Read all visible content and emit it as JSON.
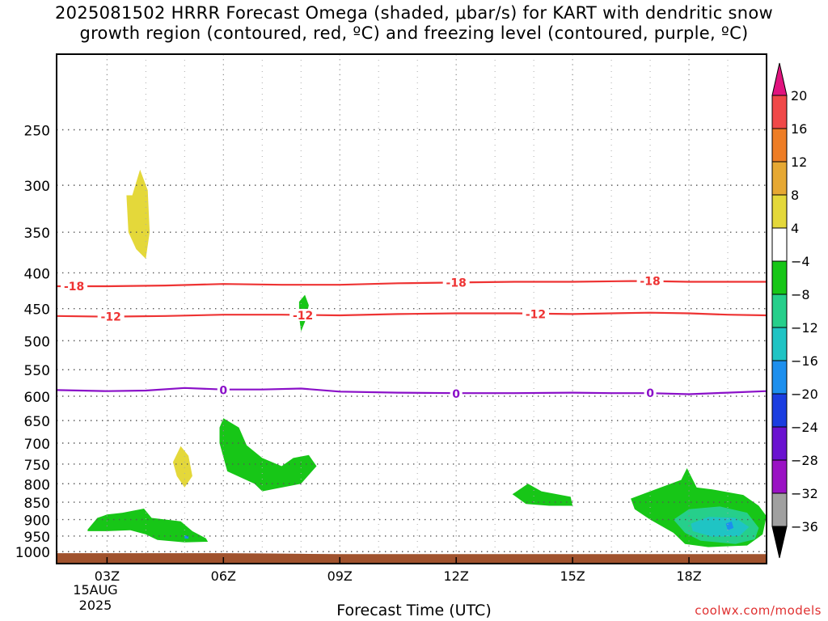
{
  "title": {
    "line1": "2025081502 HRRR Forecast Omega (shaded, μbar/s) for KART with dendritic snow",
    "line2": "growth region (contoured, red, ºC) and freezing level (contoured, purple, ºC)"
  },
  "footer": {
    "xlabel": "Forecast Time (UTC)",
    "site": "coolwx.com/models",
    "date_line1": "15AUG",
    "date_line2": "2025"
  },
  "colors": {
    "snow_growth_contour": "#ee3333",
    "freezing_level_contour": "#8a10c8",
    "terrain": "#a0522d",
    "grid": "#555555"
  },
  "chart_data": {
    "type": "time-height cross section",
    "x": {
      "unit": "forecast hour",
      "range": [
        1.7,
        20.0
      ],
      "ticks": [
        {
          "value": 3,
          "label": "03Z"
        },
        {
          "value": 6,
          "label": "06Z"
        },
        {
          "value": 9,
          "label": "09Z"
        },
        {
          "value": 12,
          "label": "12Z"
        },
        {
          "value": 15,
          "label": "15Z"
        },
        {
          "value": 18,
          "label": "18Z"
        }
      ]
    },
    "y": {
      "unit": "hPa",
      "scale": "log",
      "range": [
        1040,
        195
      ],
      "ticks": [
        250,
        300,
        350,
        400,
        450,
        500,
        550,
        600,
        650,
        700,
        750,
        800,
        850,
        900,
        950,
        1000
      ]
    },
    "grid": true,
    "colorbar": {
      "labels": [
        "20",
        "16",
        "12",
        "8",
        "4",
        "−4",
        "−8",
        "−12",
        "−16",
        "−20",
        "−24",
        "−28",
        "−32",
        "−36"
      ],
      "colors_top": "#e0137e",
      "colors_bottom": "#000000",
      "bins": [
        {
          "from": 16,
          "to": 20,
          "color": "#f04848"
        },
        {
          "from": 12,
          "to": 16,
          "color": "#ee7d25"
        },
        {
          "from": 8,
          "to": 12,
          "color": "#e6a833"
        },
        {
          "from": 4,
          "to": 8,
          "color": "#e4d83a"
        },
        {
          "from": -4,
          "to": 4,
          "color": "#ffffff"
        },
        {
          "from": -8,
          "to": -4,
          "color": "#17c617"
        },
        {
          "from": -12,
          "to": -8,
          "color": "#26cf8b"
        },
        {
          "from": -16,
          "to": -12,
          "color": "#1fc4c4"
        },
        {
          "from": -20,
          "to": -16,
          "color": "#1c8fee"
        },
        {
          "from": -24,
          "to": -20,
          "color": "#1a3de0"
        },
        {
          "from": -28,
          "to": -24,
          "color": "#6a12d0"
        },
        {
          "from": -32,
          "to": -28,
          "color": "#9a12c4"
        },
        {
          "from": -36,
          "to": -32,
          "color": "#a0a0a0"
        }
      ]
    },
    "contours": [
      {
        "name": "-18",
        "color": "#ee3333",
        "points": [
          [
            1.7,
            418
          ],
          [
            3,
            418
          ],
          [
            4.5,
            417
          ],
          [
            6,
            415
          ],
          [
            7.5,
            416
          ],
          [
            9,
            416
          ],
          [
            10.5,
            414
          ],
          [
            12,
            413
          ],
          [
            13.5,
            412
          ],
          [
            15,
            412
          ],
          [
            16.5,
            411
          ],
          [
            17,
            411
          ],
          [
            18,
            412
          ],
          [
            19,
            412
          ],
          [
            20,
            412
          ]
        ],
        "labels": [
          [
            2.15,
            418
          ],
          [
            12,
            413
          ],
          [
            17,
            411
          ]
        ]
      },
      {
        "name": "-12",
        "color": "#ee3333",
        "points": [
          [
            1.7,
            461
          ],
          [
            3,
            462
          ],
          [
            4.5,
            461
          ],
          [
            6,
            459
          ],
          [
            7.5,
            459
          ],
          [
            9,
            460
          ],
          [
            10.5,
            458
          ],
          [
            12,
            457
          ],
          [
            13.5,
            457
          ],
          [
            15,
            458
          ],
          [
            16,
            457
          ],
          [
            17,
            456
          ],
          [
            18,
            457
          ],
          [
            19,
            459
          ],
          [
            20,
            460
          ]
        ],
        "labels": [
          [
            3.1,
            462
          ],
          [
            8.05,
            460
          ],
          [
            14.05,
            458
          ]
        ]
      },
      {
        "name": "0",
        "color": "#8a10c8",
        "points": [
          [
            1.7,
            588
          ],
          [
            3,
            590
          ],
          [
            4,
            589
          ],
          [
            5,
            584
          ],
          [
            6,
            587
          ],
          [
            7,
            587
          ],
          [
            8,
            585
          ],
          [
            9,
            591
          ],
          [
            10.5,
            593
          ],
          [
            12,
            594
          ],
          [
            13.5,
            594
          ],
          [
            15,
            593
          ],
          [
            16,
            594
          ],
          [
            17,
            594
          ],
          [
            18,
            596
          ],
          [
            19,
            593
          ],
          [
            20,
            590
          ]
        ],
        "labels": [
          [
            6,
            588
          ],
          [
            12,
            595
          ],
          [
            17,
            594
          ]
        ]
      }
    ],
    "shaded_regions": [
      {
        "class": "4 to 8",
        "points": [
          [
            3.65,
            310
          ],
          [
            3.85,
            285
          ],
          [
            4.05,
            305
          ],
          [
            4.1,
            350
          ],
          [
            4.0,
            382
          ],
          [
            3.75,
            370
          ],
          [
            3.55,
            350
          ],
          [
            3.5,
            310
          ]
        ]
      },
      {
        "class": "-8 to -4",
        "points": [
          [
            7.95,
            440
          ],
          [
            8.1,
            430
          ],
          [
            8.2,
            445
          ],
          [
            8.1,
            470
          ],
          [
            8.0,
            485
          ],
          [
            7.95,
            462
          ]
        ]
      },
      {
        "class": "-8 to -4",
        "points": [
          [
            5.9,
            665
          ],
          [
            6.0,
            645
          ],
          [
            6.4,
            665
          ],
          [
            6.6,
            705
          ],
          [
            7.0,
            735
          ],
          [
            7.5,
            755
          ],
          [
            7.8,
            735
          ],
          [
            8.2,
            728
          ],
          [
            8.4,
            755
          ],
          [
            8.0,
            800
          ],
          [
            7.0,
            820
          ],
          [
            6.8,
            800
          ],
          [
            6.1,
            768
          ],
          [
            5.9,
            700
          ]
        ]
      },
      {
        "class": "4 to 8",
        "points": [
          [
            4.7,
            745
          ],
          [
            4.9,
            707
          ],
          [
            5.1,
            730
          ],
          [
            5.2,
            780
          ],
          [
            5.0,
            810
          ],
          [
            4.8,
            780
          ]
        ]
      },
      {
        "class": "-8 to -4",
        "points": [
          [
            2.5,
            930
          ],
          [
            2.75,
            895
          ],
          [
            3.0,
            885
          ],
          [
            3.4,
            880
          ],
          [
            3.95,
            868
          ],
          [
            4.15,
            895
          ],
          [
            4.9,
            905
          ],
          [
            5.2,
            935
          ],
          [
            5.55,
            957
          ],
          [
            5.6,
            968
          ],
          [
            5.0,
            970
          ],
          [
            4.3,
            962
          ],
          [
            4.0,
            945
          ],
          [
            3.6,
            932
          ],
          [
            3.0,
            935
          ],
          [
            2.5,
            935
          ]
        ]
      },
      {
        "class": "-20 to -16",
        "points": [
          [
            5.0,
            948
          ],
          [
            5.1,
            950
          ],
          [
            5.1,
            958
          ],
          [
            5.0,
            958
          ]
        ]
      },
      {
        "class": "-8 to -4",
        "points": [
          [
            13.45,
            828
          ],
          [
            13.85,
            800
          ],
          [
            14.2,
            820
          ],
          [
            14.95,
            835
          ],
          [
            15.0,
            860
          ],
          [
            14.4,
            860
          ],
          [
            13.8,
            855
          ]
        ]
      },
      {
        "class": "-8 to -4",
        "points": [
          [
            16.5,
            840
          ],
          [
            17.0,
            820
          ],
          [
            17.8,
            790
          ],
          [
            17.95,
            760
          ],
          [
            18.2,
            810
          ],
          [
            18.6,
            815
          ],
          [
            19.4,
            830
          ],
          [
            19.8,
            860
          ],
          [
            20,
            890
          ],
          [
            19.9,
            945
          ],
          [
            19.5,
            980
          ],
          [
            18.5,
            985
          ],
          [
            17.9,
            975
          ],
          [
            17.6,
            940
          ],
          [
            17.0,
            900
          ],
          [
            16.6,
            870
          ]
        ]
      },
      {
        "class": "-12 to -8",
        "points": [
          [
            17.6,
            900
          ],
          [
            18.0,
            870
          ],
          [
            18.8,
            862
          ],
          [
            19.5,
            880
          ],
          [
            19.8,
            925
          ],
          [
            19.7,
            960
          ],
          [
            19.2,
            975
          ],
          [
            18.3,
            965
          ],
          [
            17.9,
            940
          ]
        ]
      },
      {
        "class": "-16 to -12",
        "points": [
          [
            18.05,
            912
          ],
          [
            18.5,
            892
          ],
          [
            19.2,
            895
          ],
          [
            19.55,
            922
          ],
          [
            19.3,
            950
          ],
          [
            18.6,
            952
          ],
          [
            18.1,
            935
          ]
        ]
      },
      {
        "class": "-20 to -16",
        "points": [
          [
            18.95,
            912
          ],
          [
            19.1,
            905
          ],
          [
            19.15,
            925
          ],
          [
            19.0,
            932
          ]
        ]
      }
    ],
    "terrain": {
      "label": "",
      "top": [
        [
          1.7,
          1005
        ],
        [
          6,
          1005
        ],
        [
          7.2,
          1006
        ],
        [
          8,
          1007
        ],
        [
          9,
          1008
        ],
        [
          20,
          1008
        ]
      ]
    }
  }
}
